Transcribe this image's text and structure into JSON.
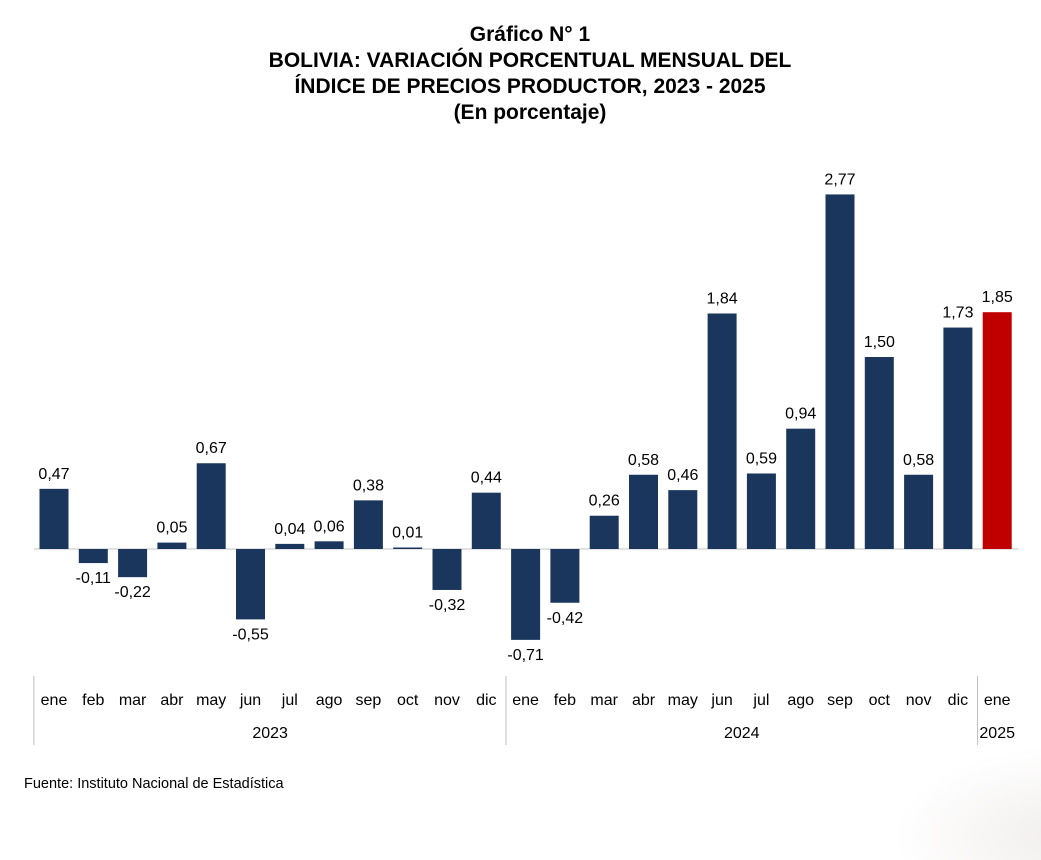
{
  "title_lines": [
    "Gráfico N° 1",
    "BOLIVIA: VARIACIÓN PORCENTUAL MENSUAL DEL",
    "ÍNDICE DE PRECIOS PRODUCTOR, 2023 - 2025",
    "(En porcentaje)"
  ],
  "source": "Fuente: Instituto Nacional de Estadística",
  "colors": {
    "bar": "#1b365d",
    "highlight": "#c00000",
    "baseline": "#d9d9d9",
    "separator": "#bfbfbf"
  },
  "chart_data": {
    "type": "bar",
    "title": "BOLIVIA: VARIACIÓN PORCENTUAL MENSUAL DEL ÍNDICE DE PRECIOS PRODUCTOR, 2023 - 2025",
    "subtitle": "(En porcentaje)",
    "categories": [
      "ene",
      "feb",
      "mar",
      "abr",
      "may",
      "jun",
      "jul",
      "ago",
      "sep",
      "oct",
      "nov",
      "dic",
      "ene",
      "feb",
      "mar",
      "abr",
      "may",
      "jun",
      "jul",
      "ago",
      "sep",
      "oct",
      "nov",
      "dic",
      "ene"
    ],
    "values": [
      0.47,
      -0.11,
      -0.22,
      0.05,
      0.67,
      -0.55,
      0.04,
      0.06,
      0.38,
      0.01,
      -0.32,
      0.44,
      -0.71,
      -0.42,
      0.26,
      0.58,
      0.46,
      1.84,
      0.59,
      0.94,
      2.77,
      1.5,
      0.58,
      1.73,
      1.85
    ],
    "value_labels": [
      "0,47",
      "-0,11",
      "-0,22",
      "0,05",
      "0,67",
      "-0,55",
      "0,04",
      "0,06",
      "0,38",
      "0,01",
      "-0,32",
      "0,44",
      "-0,71",
      "-0,42",
      "0,26",
      "0,58",
      "0,46",
      "1,84",
      "0,59",
      "0,94",
      "2,77",
      "1,50",
      "0,58",
      "1,73",
      "1,85"
    ],
    "year_groups": [
      {
        "label": "2023",
        "count": 12
      },
      {
        "label": "2024",
        "count": 12
      },
      {
        "label": "2025",
        "count": 1
      }
    ],
    "highlight_index": 24,
    "xlabel": "",
    "ylabel": "",
    "grid": false,
    "legend": "none"
  }
}
